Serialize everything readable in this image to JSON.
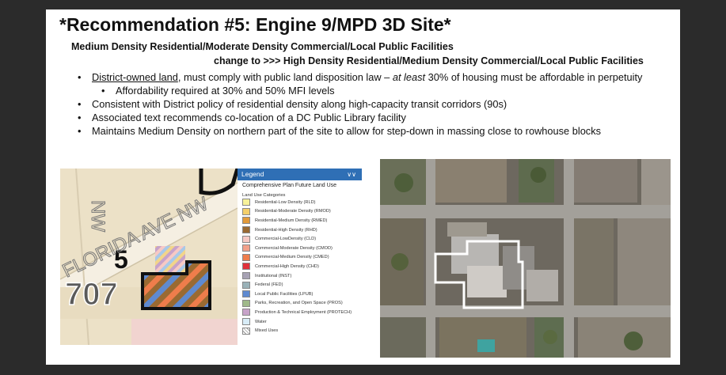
{
  "slide": {
    "title": "*Recommendation #5: Engine 9/MPD 3D Site*",
    "subtitle_1": "Medium Density Residential/Moderate Density Commercial/Local Public Facilities",
    "subtitle_2": "change to >>> High Density Residential/Medium Density Commercial/Local Public Facilities"
  },
  "bullets": {
    "b1_underlined": "District-owned land",
    "b1_mid": ", must comply with public land disposition law – ",
    "b1_italic": "at least",
    "b1_end": " 30% of housing must be affordable in perpetuity",
    "b1_sub": "Affordability required at 30% and 50% MFI levels",
    "b2": "Consistent with District policy of residential density along high-capacity transit corridors (90s)",
    "b3": "Associated text recommends co-location of a DC Public Library facility",
    "b4": "Maintains Medium Density on northern part of the site to allow for step-down in massing close to rowhouse blocks"
  },
  "map": {
    "street_label": "FLORIDA AVE NW",
    "side_label": "NW",
    "site_number": "5",
    "parcel_number": "707"
  },
  "legend": {
    "header": "Legend",
    "layer": "Comprehensive Plan Future Land Use",
    "category_title": "Land Use Categories",
    "items": [
      {
        "label": "Residential-Low Density (RLD)",
        "color": "#f7f29a"
      },
      {
        "label": "Residential-Moderate Density (RMOD)",
        "color": "#f4cf6a"
      },
      {
        "label": "Residential-Medium Density (RMED)",
        "color": "#e29a3a"
      },
      {
        "label": "Residential-High Density (RHD)",
        "color": "#9a6a32"
      },
      {
        "label": "Commercial-LowDensity (CLD)",
        "color": "#f7c9c4"
      },
      {
        "label": "Commercial-Moderate Density (CMOD)",
        "color": "#f2a08a"
      },
      {
        "label": "Commercial-Medium Density (CMED)",
        "color": "#ef7d4b"
      },
      {
        "label": "Commercial-High Density (CHD)",
        "color": "#e0313a"
      },
      {
        "label": "Institutional (INST)",
        "color": "#a7a2b4"
      },
      {
        "label": "Federal (FED)",
        "color": "#9ab2b8"
      },
      {
        "label": "Local Public Facilities (LPUB)",
        "color": "#5f8ad0"
      },
      {
        "label": "Parks, Recreation, and Open Space (PROS)",
        "color": "#9fb98a"
      },
      {
        "label": "Production & Technical Employment (PROTECH)",
        "color": "#c7a3c9"
      },
      {
        "label": "Water",
        "color": "#d8ecf7"
      },
      {
        "label": "Mixed Uses",
        "color": "#ffffff"
      }
    ]
  },
  "colors": {
    "slide_bg": "#ffffff",
    "page_bg": "#2b2b2b",
    "legend_header": "#2f6fb5",
    "site_outline": "#ffffff"
  }
}
